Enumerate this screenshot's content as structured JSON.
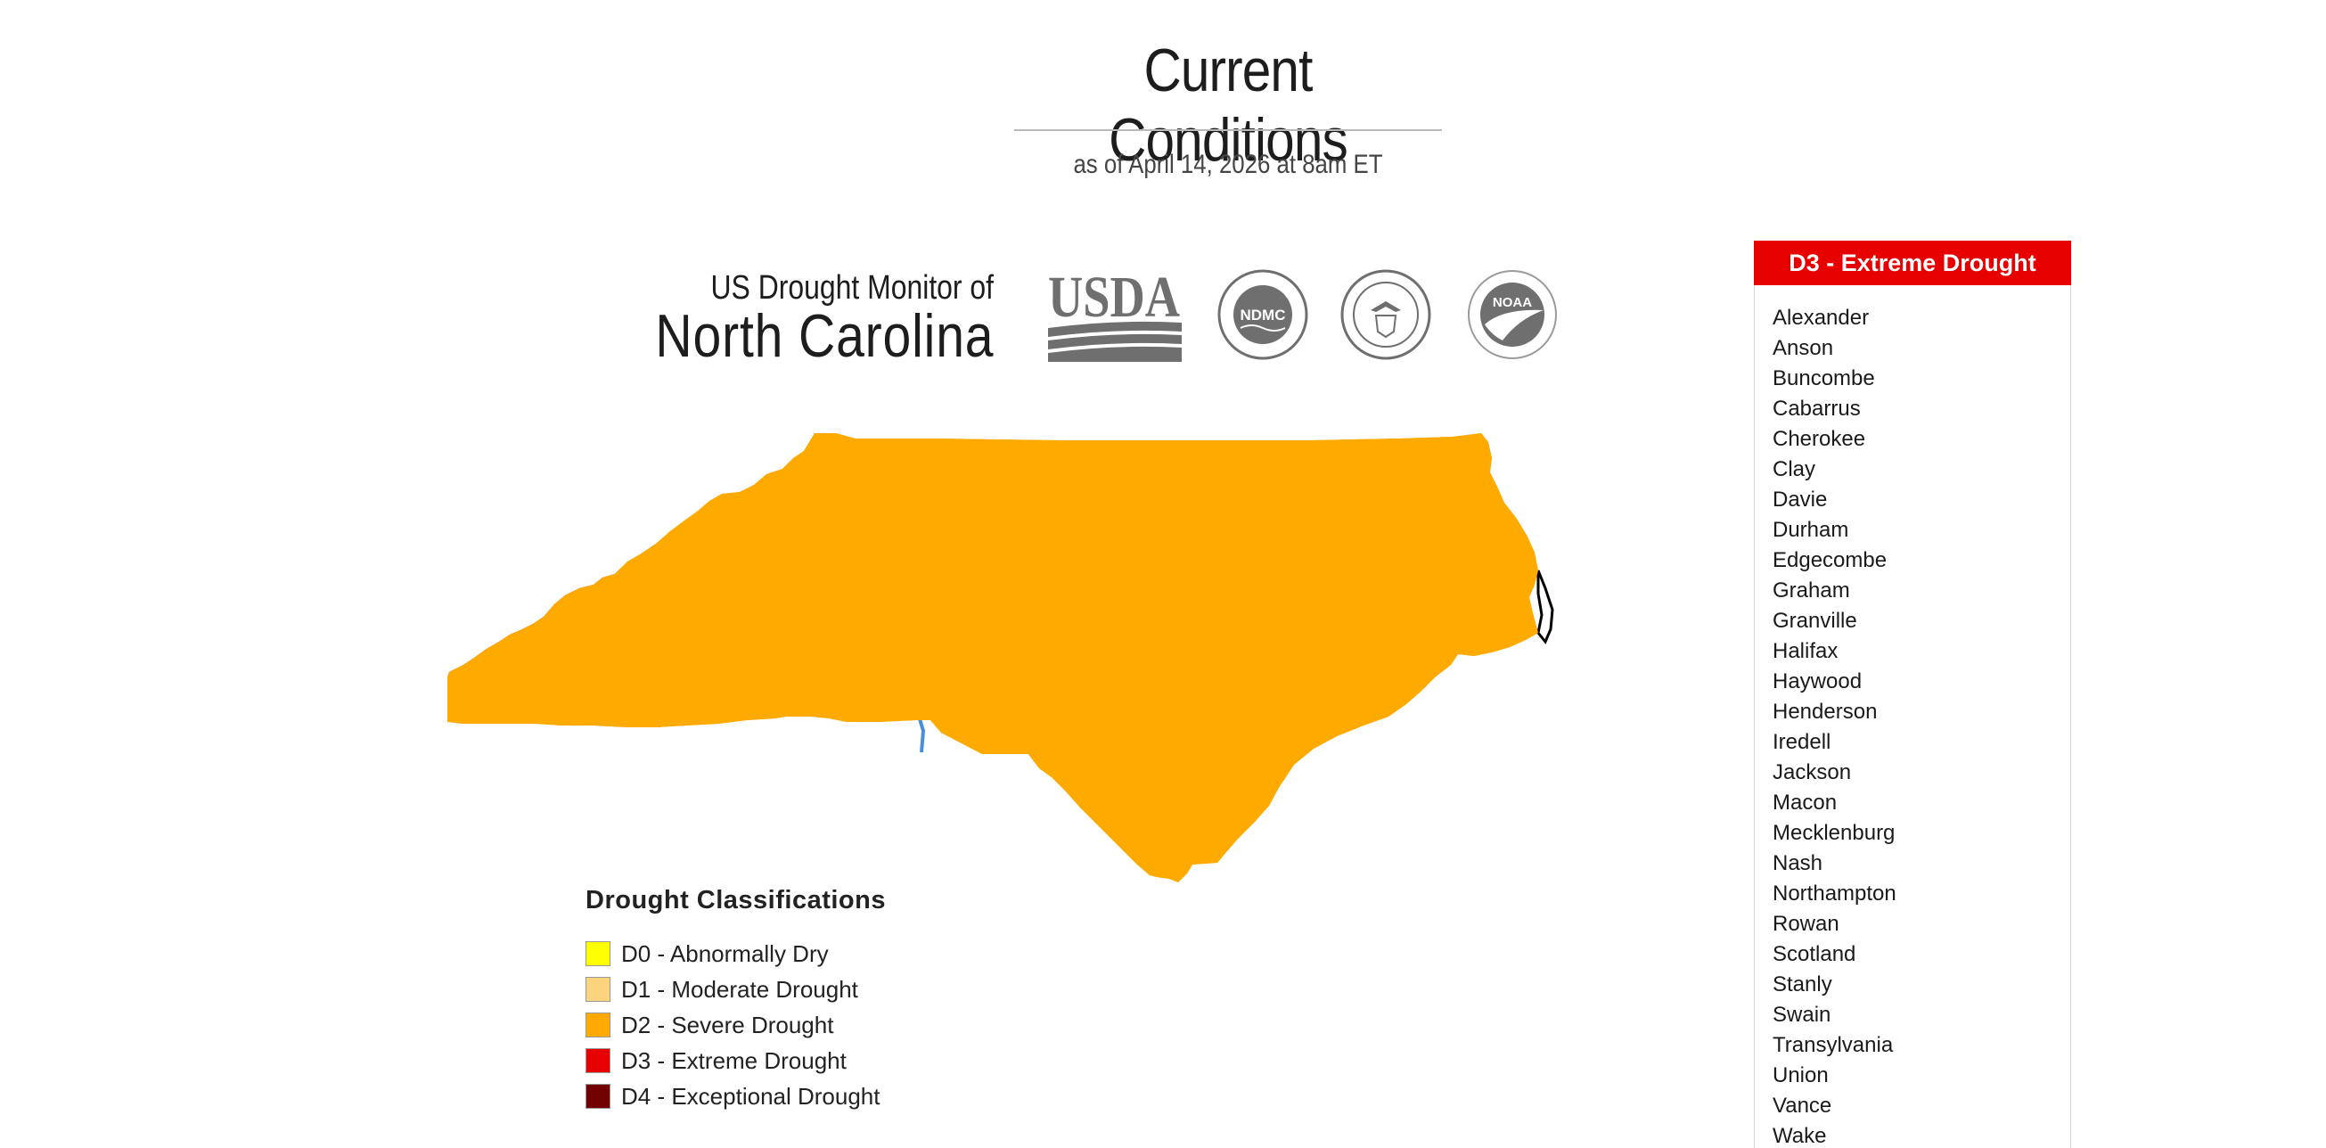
{
  "header": {
    "title": "Current Conditions",
    "subtitle": "as of April 14, 2026 at 8am ET"
  },
  "brand": {
    "line1": "US Drought Monitor of",
    "state": "North Carolina",
    "logos": [
      {
        "name": "usda-logo",
        "text": "USDA"
      },
      {
        "name": "ndmc-logo",
        "text": "NDMC"
      },
      {
        "name": "commerce-seal-logo",
        "text": ""
      },
      {
        "name": "noaa-logo",
        "text": "NOAA"
      }
    ]
  },
  "legend": {
    "title": "Drought Classifications",
    "items": [
      {
        "label": "D0 - Abnormally Dry",
        "color": "#ffff00"
      },
      {
        "label": "D1 - Moderate Drought",
        "color": "#fcd37f"
      },
      {
        "label": "D2 - Severe Drought",
        "color": "#ffaa00"
      },
      {
        "label": "D3 - Extreme Drought",
        "color": "#e60000"
      },
      {
        "label": "D4 - Exceptional Drought",
        "color": "#730000"
      }
    ]
  },
  "map": {
    "state_fill": "#ffaa00",
    "d3_color": "#e60000",
    "d1_color": "#fcd37f",
    "river_color": "#4a90d9"
  },
  "panel": {
    "title": "D3 - Extreme Drought",
    "header_color": "#e60000",
    "counties": [
      "Alexander",
      "Anson",
      "Buncombe",
      "Cabarrus",
      "Cherokee",
      "Clay",
      "Davie",
      "Durham",
      "Edgecombe",
      "Graham",
      "Granville",
      "Halifax",
      "Haywood",
      "Henderson",
      "Iredell",
      "Jackson",
      "Macon",
      "Mecklenburg",
      "Nash",
      "Northampton",
      "Rowan",
      "Scotland",
      "Stanly",
      "Swain",
      "Transylvania",
      "Union",
      "Vance",
      "Wake"
    ]
  }
}
